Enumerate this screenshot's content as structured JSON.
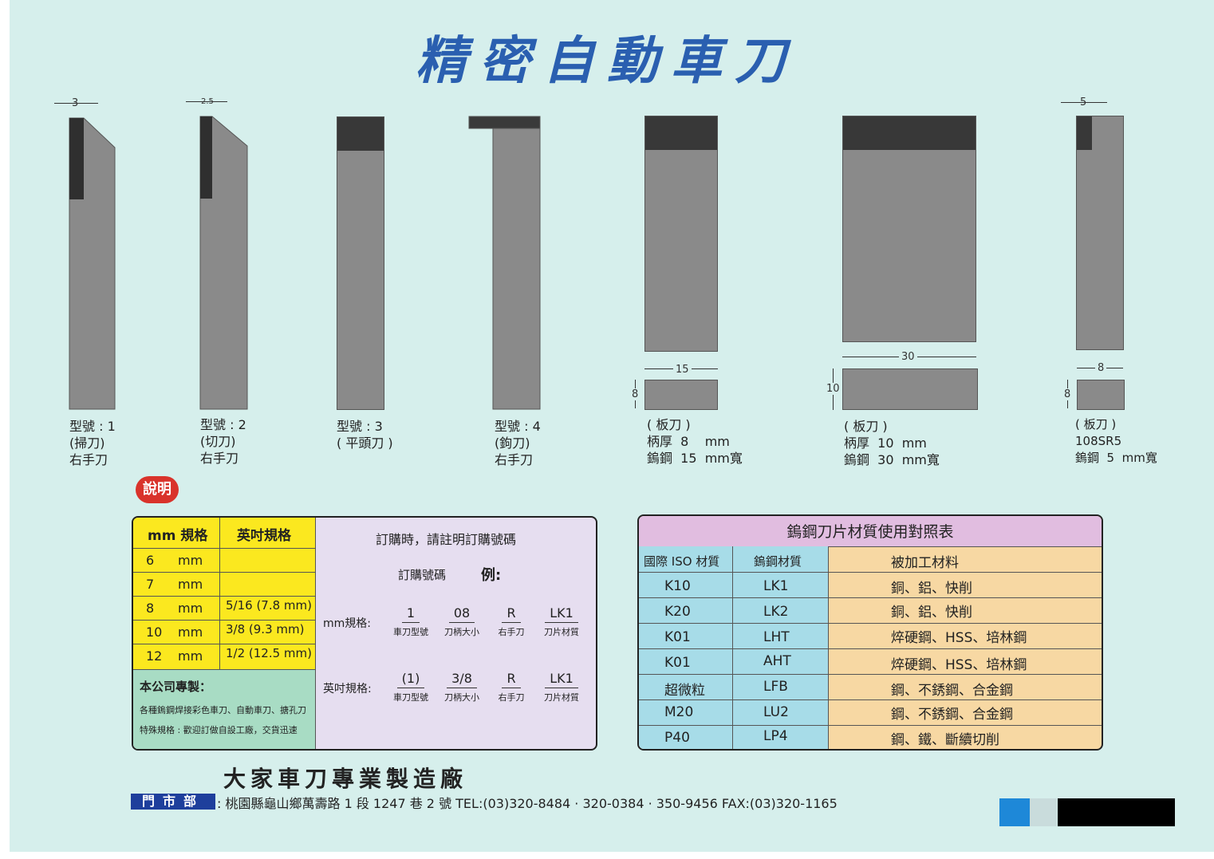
{
  "title": "精密自動車刀",
  "tools": [
    {
      "dim": "3",
      "caption": "型號 : 1\n(掃刀)\n右手刀"
    },
    {
      "dim": "2.5",
      "caption": "型號 : 2\n(切刀)\n右手刀"
    },
    {
      "caption": "型號 : 3\n( 平頭刀 )"
    },
    {
      "caption": "型號 : 4\n(鉤刀)\n右手刀"
    },
    {
      "width_dim": "15",
      "height_dim": "8",
      "caption": "( 板刀 )\n柄厚  8    mm\n鎢鋼  15  mm寬"
    },
    {
      "width_dim": "30",
      "height_dim": "10",
      "caption": "( 板刀 )\n柄厚  10  mm\n鎢鋼  30  mm寬"
    },
    {
      "dim": "5",
      "width_dim": "8",
      "height_dim": "8",
      "caption": "( 板刀 )\n108SR5\n鎢鋼  5  mm寬"
    }
  ],
  "badge": "說明",
  "order_table": {
    "header_mm": "mm 規格",
    "header_inch": "英吋規格",
    "rows": [
      {
        "mm": "6",
        "unit": "mm",
        "inch": ""
      },
      {
        "mm": "7",
        "unit": "mm",
        "inch": ""
      },
      {
        "mm": "8",
        "unit": "mm",
        "inch": "5/16 (7.8 mm)"
      },
      {
        "mm": "10",
        "unit": "mm",
        "inch": "3/8 (9.3 mm)"
      },
      {
        "mm": "12",
        "unit": "mm",
        "inch": "1/2 (12.5 mm)"
      }
    ],
    "company_title": "本公司專製：",
    "company_line1": "各種鎢鋼焊接彩色車刀、自動車刀、搪孔刀",
    "company_line2": "特殊規格 : 歡迎訂做自設工廠，交貨迅速",
    "order_note": "訂購時，請註明訂購號碼",
    "order_no_label": "訂購號碼",
    "example_label": "例:",
    "mm_label": "mm規格:",
    "inch_label": "英吋規格:",
    "mm_codes": [
      {
        "value": "1",
        "label": "車刀型號"
      },
      {
        "value": "08",
        "label": "刀柄大小"
      },
      {
        "value": "R",
        "label": "右手刀"
      },
      {
        "value": "LK1",
        "label": "刀片材質"
      }
    ],
    "inch_codes": [
      {
        "value": "(1)",
        "label": "車刀型號"
      },
      {
        "value": "3/8",
        "label": "刀柄大小"
      },
      {
        "value": "R",
        "label": "右手刀"
      },
      {
        "value": "LK1",
        "label": "刀片材質"
      }
    ]
  },
  "material_table": {
    "title": "鎢鋼刀片材質使用對照表",
    "headers": [
      "國際 ISO 材質",
      "鎢鋼材質",
      "被加工材料"
    ],
    "rows": [
      [
        "K10",
        "LK1",
        "銅、鋁、快削"
      ],
      [
        "K20",
        "LK2",
        "銅、鋁、快削"
      ],
      [
        "K01",
        "LHT",
        "焠硬鋼、HSS、培林鋼"
      ],
      [
        "K01",
        "AHT",
        "焠硬鋼、HSS、培林鋼"
      ],
      [
        "超微粒",
        "LFB",
        "鋼、不銹鋼、合金鋼"
      ],
      [
        "M20",
        "LU2",
        "鋼、不銹鋼、合金鋼"
      ],
      [
        "P40",
        "LP4",
        "鋼、鐵、斷續切削"
      ]
    ]
  },
  "footer": {
    "company": "大家車刀專業製造廠",
    "store_label": "門市部",
    "address": ": 桃園縣龜山鄉萬壽路 1 段 1247 巷 2 號  TEL:(03)320-8484 · 320-0384 · 350-9456 FAX:(03)320-1165"
  },
  "colors": {
    "title": "#2a5fb0",
    "background": "#d6efec",
    "yellow": "#fbe81f",
    "lavender": "#e6def0",
    "teal": "#a7dce8",
    "peach": "#f7d8a3"
  }
}
